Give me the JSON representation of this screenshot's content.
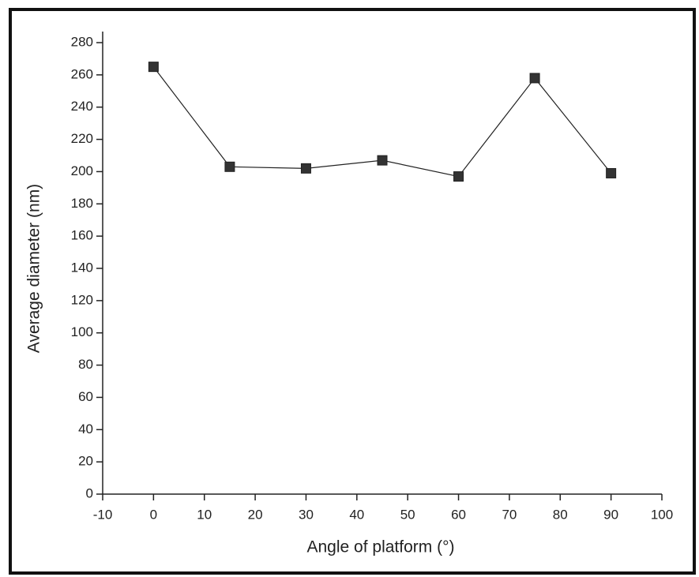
{
  "chart_data": {
    "type": "line",
    "x_label": "Angle of platform (°)",
    "y_label": "Average diameter (nm)",
    "x": [
      0,
      15,
      30,
      45,
      60,
      75,
      90
    ],
    "series": [
      {
        "name": null,
        "color": "#222222",
        "values": [
          265,
          203,
          202,
          207,
          197,
          258,
          199
        ]
      }
    ],
    "xlim": [
      -10,
      100
    ],
    "xticks": [
      -10,
      0,
      10,
      20,
      30,
      40,
      50,
      60,
      70,
      80,
      90,
      100
    ],
    "ylim": [
      0,
      280
    ],
    "yticks": [
      0,
      20,
      40,
      60,
      80,
      100,
      120,
      140,
      160,
      180,
      200,
      220,
      240,
      260,
      280
    ],
    "grid": false
  }
}
